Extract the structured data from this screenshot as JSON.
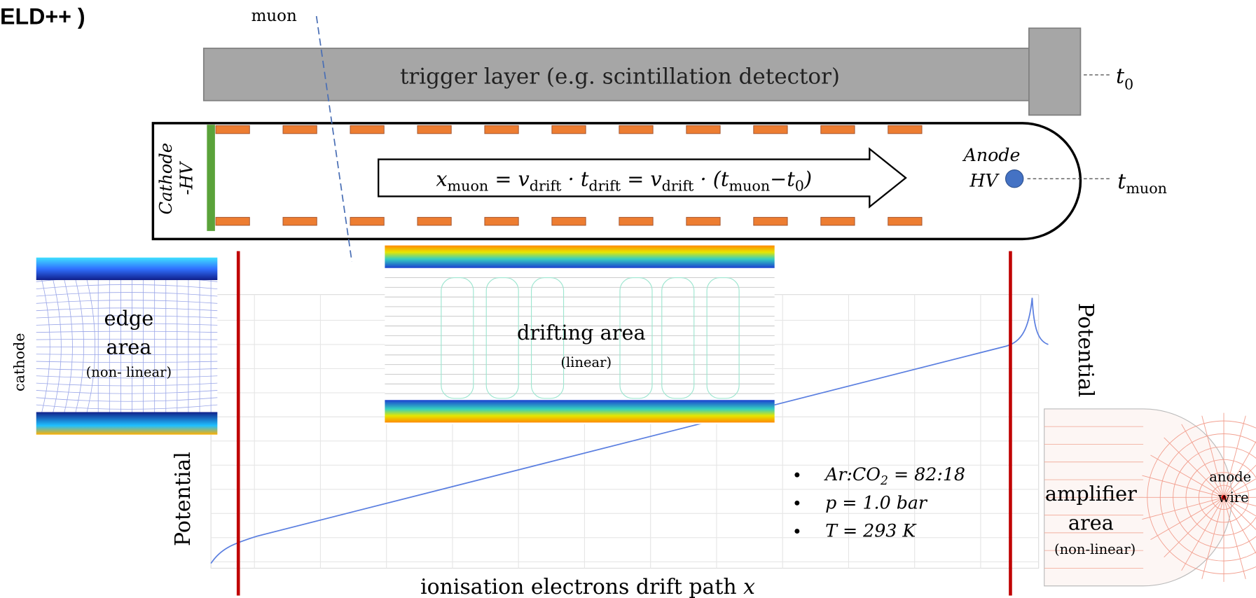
{
  "header": {
    "fragment": "ELD++ )"
  },
  "muon_label": "muon",
  "trigger": {
    "label": "trigger layer (e.g. scintillation detector)",
    "time": {
      "base": "t",
      "sub": "0"
    }
  },
  "chamber": {
    "cathode_label": [
      "Cathode",
      "-HV"
    ],
    "anode_label": [
      "Anode",
      "HV"
    ],
    "anode_time": {
      "base": "t",
      "sub": "muon"
    },
    "formula": [
      "x",
      "muon",
      " = v",
      "drift",
      " · t",
      "drift",
      " = v",
      "drift",
      " · (t",
      "muon",
      "−t",
      "0",
      ")"
    ]
  },
  "plot": {
    "x_label": {
      "text": "ionisation electrons drift path ",
      "var": "x"
    },
    "y_label_left": "Potential",
    "y_label_right": "Potential",
    "cathode_side": "cathode",
    "edge_area": [
      "edge",
      "area",
      "(non- linear)"
    ],
    "drifting_area": [
      "drifting area",
      "(linear)"
    ],
    "amplifier_area": [
      "amplifier",
      "area",
      "(non-linear)"
    ],
    "anode_wire": [
      "anode",
      "wire"
    ],
    "conditions": [
      [
        "Ar:CO",
        "2",
        " = 82:18"
      ],
      [
        "p = 1.0 bar"
      ],
      [
        "T = 293 K"
      ]
    ]
  }
}
